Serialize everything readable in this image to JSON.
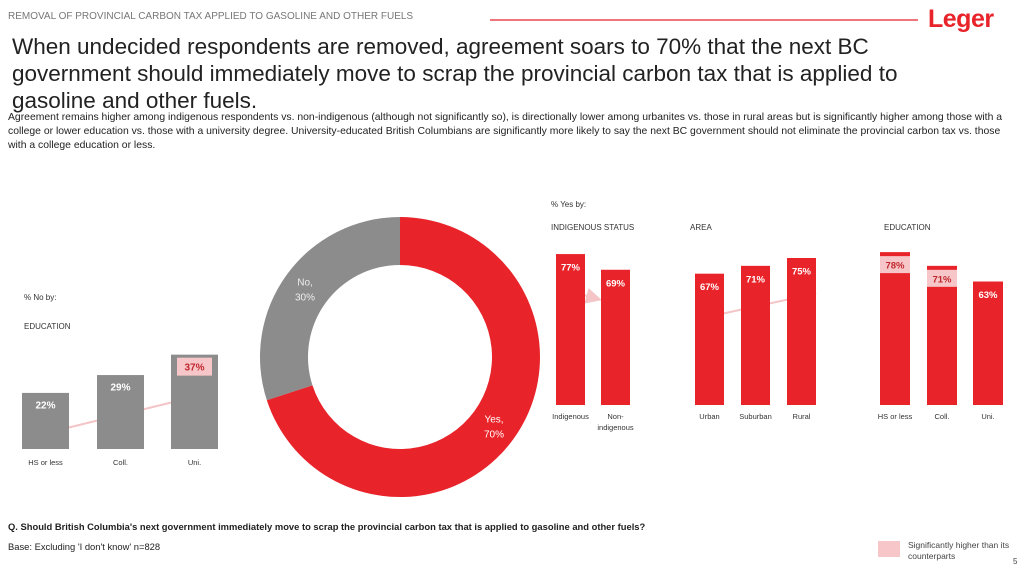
{
  "header": {
    "kicker": "REMOVAL OF PROVINCIAL CARBON TAX APPLIED TO GASOLINE AND OTHER FUELS",
    "logo": "Leger",
    "title": "When undecided respondents are removed, agreement soars to 70% that the next BC government should immediately move to scrap the provincial carbon tax that is applied to gasoline and other fuels.",
    "body": "Agreement remains higher among indigenous respondents vs. non-indigenous (although not significantly so), is directionally lower among urbanites vs. those in rural areas but is significantly higher among those with a college or lower education vs. those with a university degree. University-educated British Columbians are significantly more likely to say the next BC government should not eliminate the provincial carbon tax vs. those with a college education or less."
  },
  "yes_panel_label": "% Yes by:",
  "chart_data": [
    {
      "type": "bar",
      "subtitle": "% No by:",
      "title": "EDUCATION",
      "categories": [
        "HS or less",
        "Coll.",
        "Uni."
      ],
      "values": [
        22,
        29,
        37
      ],
      "value_labels": [
        "22%",
        "29%",
        "37%"
      ],
      "color": "#8c8c8c",
      "highlight": [
        false,
        false,
        true
      ]
    },
    {
      "type": "pie",
      "categories": [
        "No,",
        "Yes,"
      ],
      "values": [
        30,
        70
      ],
      "value_labels": [
        "30%",
        "70%"
      ],
      "colors": [
        "#8c8c8c",
        "#e8232a"
      ]
    },
    {
      "type": "bar",
      "title": "INDIGENOUS STATUS",
      "categories": [
        "Indigenous",
        "Non-indigenous"
      ],
      "values": [
        77,
        69
      ],
      "value_labels": [
        "77%",
        "69%"
      ],
      "color": "#e8232a",
      "highlight": [
        false,
        false
      ]
    },
    {
      "type": "bar",
      "title": "AREA",
      "categories": [
        "Urban",
        "Suburban",
        "Rural"
      ],
      "values": [
        67,
        71,
        75
      ],
      "value_labels": [
        "67%",
        "71%",
        "75%"
      ],
      "color": "#e8232a",
      "highlight": [
        false,
        false,
        false
      ]
    },
    {
      "type": "bar",
      "title": "EDUCATION",
      "categories": [
        "HS or less",
        "Coll.",
        "Uni."
      ],
      "values": [
        78,
        71,
        63
      ],
      "value_labels": [
        "78%",
        "71%",
        "63%"
      ],
      "color": "#e8232a",
      "highlight": [
        true,
        true,
        false
      ]
    }
  ],
  "footer": {
    "question": "Q. Should British Columbia's next government immediately move to scrap the provincial carbon tax that is applied to gasoline and other fuels?",
    "base": "Base: Excluding 'I don't know' n=828",
    "legend": "Significantly higher than its counterparts",
    "page": "5"
  }
}
